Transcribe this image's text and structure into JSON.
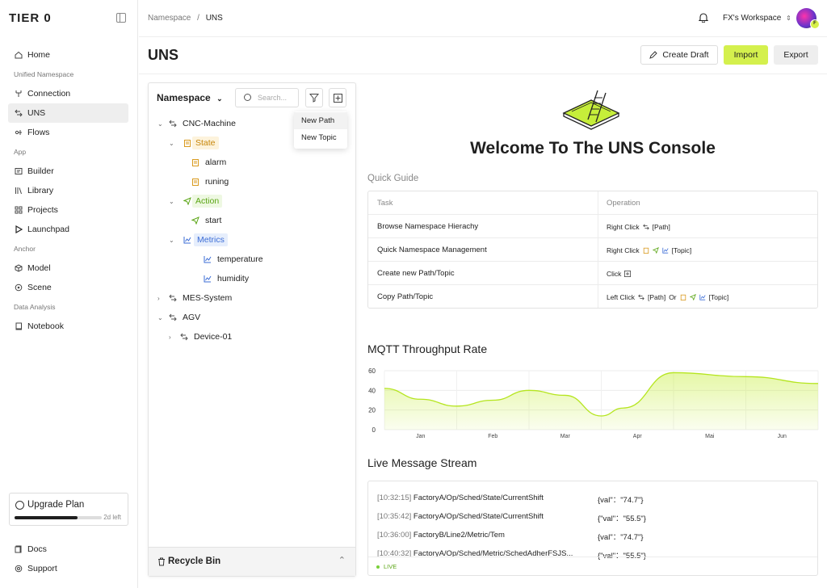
{
  "app": {
    "logo": "TIER 0"
  },
  "sidebar": {
    "items": [
      {
        "label": "Home"
      },
      {
        "section": "Unified Namespace"
      },
      {
        "label": "Connection"
      },
      {
        "label": "UNS",
        "active": true
      },
      {
        "label": "Flows"
      },
      {
        "section": "App"
      },
      {
        "label": "Builder"
      },
      {
        "label": "Library"
      },
      {
        "label": "Projects"
      },
      {
        "label": "Launchpad"
      },
      {
        "section": "Anchor"
      },
      {
        "label": "Model"
      },
      {
        "label": "Scene"
      },
      {
        "section": "Data Analysis"
      },
      {
        "label": "Notebook"
      }
    ],
    "home": "Home",
    "sec_uns": "Unified Namespace",
    "connection": "Connection",
    "uns": "UNS",
    "flows": "Flows",
    "sec_app": "App",
    "builder": "Builder",
    "library": "Library",
    "projects": "Projects",
    "launchpad": "Launchpad",
    "sec_anchor": "Anchor",
    "model": "Model",
    "scene": "Scene",
    "sec_data": "Data Analysis",
    "notebook": "Notebook",
    "upgrade_label": "Upgrade Plan",
    "upgrade_progress": 0.72,
    "upgrade_days": "2d left",
    "docs": "Docs",
    "support": "Support"
  },
  "topbar": {
    "crumb_parent": "Namespace",
    "crumb_sep": "/",
    "crumb_current": "UNS",
    "workspace": "FX's Workspace",
    "avatar_badge": "F"
  },
  "page": {
    "title": "UNS",
    "create_draft": "Create Draft",
    "import": "Import",
    "export": "Export"
  },
  "tree": {
    "title": "Namespace",
    "search_placeholder": "Search...",
    "nodes": {
      "cnc": "CNC-Machine",
      "state": "State",
      "alarm": "alarm",
      "runing": "runing",
      "action": "Action",
      "start": "start",
      "metrics": "Metrics",
      "temperature": "temperature",
      "humidity": "humidity",
      "mes": "MES-System",
      "agv": "AGV",
      "device": "Device-01"
    },
    "recycle_bin": "Recycle Bin"
  },
  "context_menu": {
    "new_path": "New Path",
    "new_topic": "New Topic"
  },
  "welcome": "Welcome To The UNS Console",
  "guide": {
    "title": "Quick Guide",
    "col_task": "Task",
    "col_operation": "Operation",
    "rows": [
      {
        "task": "Browse Namespace Hierachy",
        "op1": "Right Click",
        "op2": "[Path]"
      },
      {
        "task": "Quick Namespace Management",
        "op1": "Right Click",
        "op2": "[Topic]"
      },
      {
        "task": "Create new Path/Topic",
        "op1": "Click",
        "op2": ""
      },
      {
        "task": "Copy Path/Topic",
        "op1": "Left Click",
        "op2": "[Path]",
        "op3": "Or",
        "op4": "[Topic]"
      }
    ]
  },
  "throughput": {
    "title": "MQTT Throughput Rate"
  },
  "chart_data": {
    "type": "area",
    "title": "MQTT Throughput Rate",
    "x": [
      "Jan",
      "Feb",
      "Mar",
      "Apr",
      "Mai",
      "Jun"
    ],
    "y_ticks": [
      0,
      20,
      40,
      60
    ],
    "ylim": [
      0,
      60
    ],
    "points": [
      {
        "x": 0.0,
        "y": 42
      },
      {
        "x": 0.5,
        "y": 31
      },
      {
        "x": 1.0,
        "y": 24
      },
      {
        "x": 1.5,
        "y": 30
      },
      {
        "x": 2.0,
        "y": 40
      },
      {
        "x": 2.5,
        "y": 35
      },
      {
        "x": 3.0,
        "y": 14
      },
      {
        "x": 3.3,
        "y": 22
      },
      {
        "x": 4.0,
        "y": 58
      },
      {
        "x": 5.0,
        "y": 54
      },
      {
        "x": 6.0,
        "y": 47
      }
    ],
    "color": "#c6ee3a",
    "grid": true
  },
  "stream": {
    "title": "Live Message Stream",
    "rows": [
      {
        "ts": "[10:32:15]",
        "topic": "FactoryA/Op/Sched/State/CurrentShift",
        "val": "{val\"：\"74.7\"}"
      },
      {
        "ts": "[10:35:42]",
        "topic": "FactoryA/Op/Sched/State/CurrentShift",
        "val": "{\"val\"：\"55.5\"}"
      },
      {
        "ts": "[10:36:00]",
        "topic": "FactoryB/Line2/Metric/Tem",
        "val": "{val\"：\"74.7\"}"
      },
      {
        "ts": "[10:40:32]",
        "topic": "FactoryA/Op/Sched/Metric/SchedAdherFSJS...",
        "val": "{\"val\"：\"55.5\"}"
      }
    ],
    "live": "LIVE"
  },
  "colors": {
    "accent": "#d4f04d",
    "state": "#c7860a",
    "action": "#5aa514",
    "metrics": "#3b6cd6"
  }
}
